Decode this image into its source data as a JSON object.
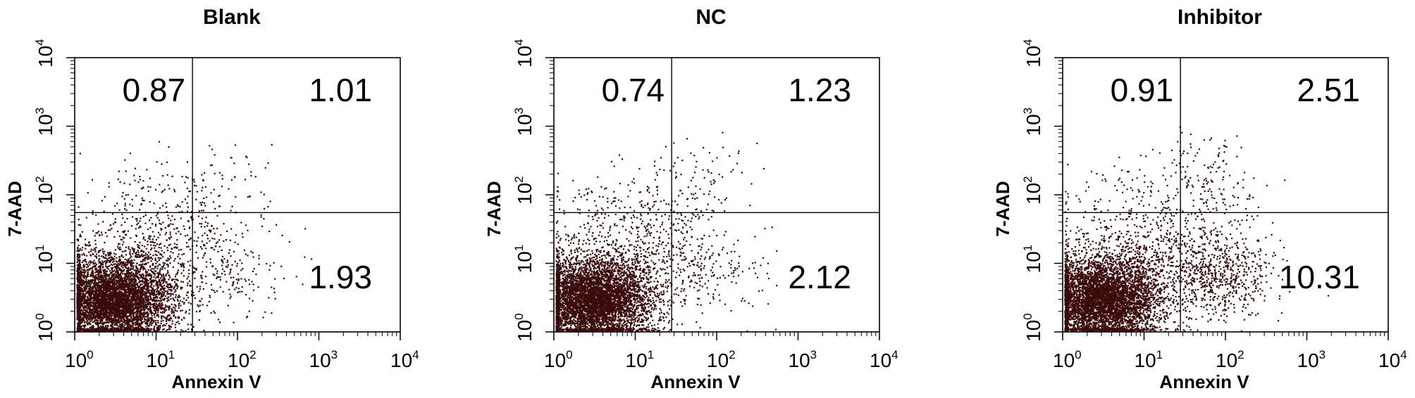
{
  "chart_data": [
    {
      "type": "scatter",
      "title": "Blank",
      "xlabel": "Annexin V",
      "ylabel": "7-AAD",
      "x_scale": "log",
      "y_scale": "log",
      "xlim": [
        1,
        10000
      ],
      "ylim": [
        1,
        10000
      ],
      "x_ticks": [
        {
          "base": "10",
          "exp": "0"
        },
        {
          "base": "10",
          "exp": "1"
        },
        {
          "base": "10",
          "exp": "2"
        },
        {
          "base": "10",
          "exp": "3"
        },
        {
          "base": "10",
          "exp": "4"
        }
      ],
      "y_ticks": [
        {
          "base": "10",
          "exp": "0"
        },
        {
          "base": "10",
          "exp": "1"
        },
        {
          "base": "10",
          "exp": "2"
        },
        {
          "base": "10",
          "exp": "3"
        },
        {
          "base": "10",
          "exp": "4"
        }
      ],
      "gates": {
        "x": 28,
        "y": 55
      },
      "quadrants": {
        "upper_left": "0.87",
        "upper_right": "1.01",
        "lower_right": "1.93"
      },
      "populations": {
        "main_center": [
          3,
          3
        ],
        "main_spread": [
          0.35,
          0.3
        ],
        "main_count": 5200,
        "early_apoptotic": 1.93,
        "late_apoptotic": 1.01,
        "necrotic": 0.87
      },
      "color": "#3a0a0a"
    },
    {
      "type": "scatter",
      "title": "NC",
      "xlabel": "Annexin V",
      "ylabel": "7-AAD",
      "x_scale": "log",
      "y_scale": "log",
      "xlim": [
        1,
        10000
      ],
      "ylim": [
        1,
        10000
      ],
      "x_ticks": [
        {
          "base": "10",
          "exp": "0"
        },
        {
          "base": "10",
          "exp": "1"
        },
        {
          "base": "10",
          "exp": "2"
        },
        {
          "base": "10",
          "exp": "3"
        },
        {
          "base": "10",
          "exp": "4"
        }
      ],
      "y_ticks": [
        {
          "base": "10",
          "exp": "0"
        },
        {
          "base": "10",
          "exp": "1"
        },
        {
          "base": "10",
          "exp": "2"
        },
        {
          "base": "10",
          "exp": "3"
        },
        {
          "base": "10",
          "exp": "4"
        }
      ],
      "gates": {
        "x": 28,
        "y": 55
      },
      "quadrants": {
        "upper_left": "0.74",
        "upper_right": "1.23",
        "lower_right": "2.12"
      },
      "populations": {
        "main_center": [
          3,
          3
        ],
        "main_spread": [
          0.35,
          0.3
        ],
        "main_count": 5200,
        "early_apoptotic": 2.12,
        "late_apoptotic": 1.23,
        "necrotic": 0.74
      },
      "color": "#3a0a0a"
    },
    {
      "type": "scatter",
      "title": "Inhibitor",
      "xlabel": "Annexin V",
      "ylabel": "7-AAD",
      "x_scale": "log",
      "y_scale": "log",
      "xlim": [
        1,
        10000
      ],
      "ylim": [
        1,
        10000
      ],
      "x_ticks": [
        {
          "base": "10",
          "exp": "0"
        },
        {
          "base": "10",
          "exp": "1"
        },
        {
          "base": "10",
          "exp": "2"
        },
        {
          "base": "10",
          "exp": "3"
        },
        {
          "base": "10",
          "exp": "4"
        }
      ],
      "y_ticks": [
        {
          "base": "10",
          "exp": "0"
        },
        {
          "base": "10",
          "exp": "1"
        },
        {
          "base": "10",
          "exp": "2"
        },
        {
          "base": "10",
          "exp": "3"
        },
        {
          "base": "10",
          "exp": "4"
        }
      ],
      "gates": {
        "x": 28,
        "y": 55
      },
      "quadrants": {
        "upper_left": "0.91",
        "upper_right": "2.51",
        "lower_right": "10.31"
      },
      "populations": {
        "main_center": [
          3,
          3
        ],
        "main_spread": [
          0.35,
          0.3
        ],
        "main_count": 5200,
        "early_apoptotic": 10.31,
        "late_apoptotic": 2.51,
        "necrotic": 0.91
      },
      "color": "#3a0a0a"
    }
  ]
}
